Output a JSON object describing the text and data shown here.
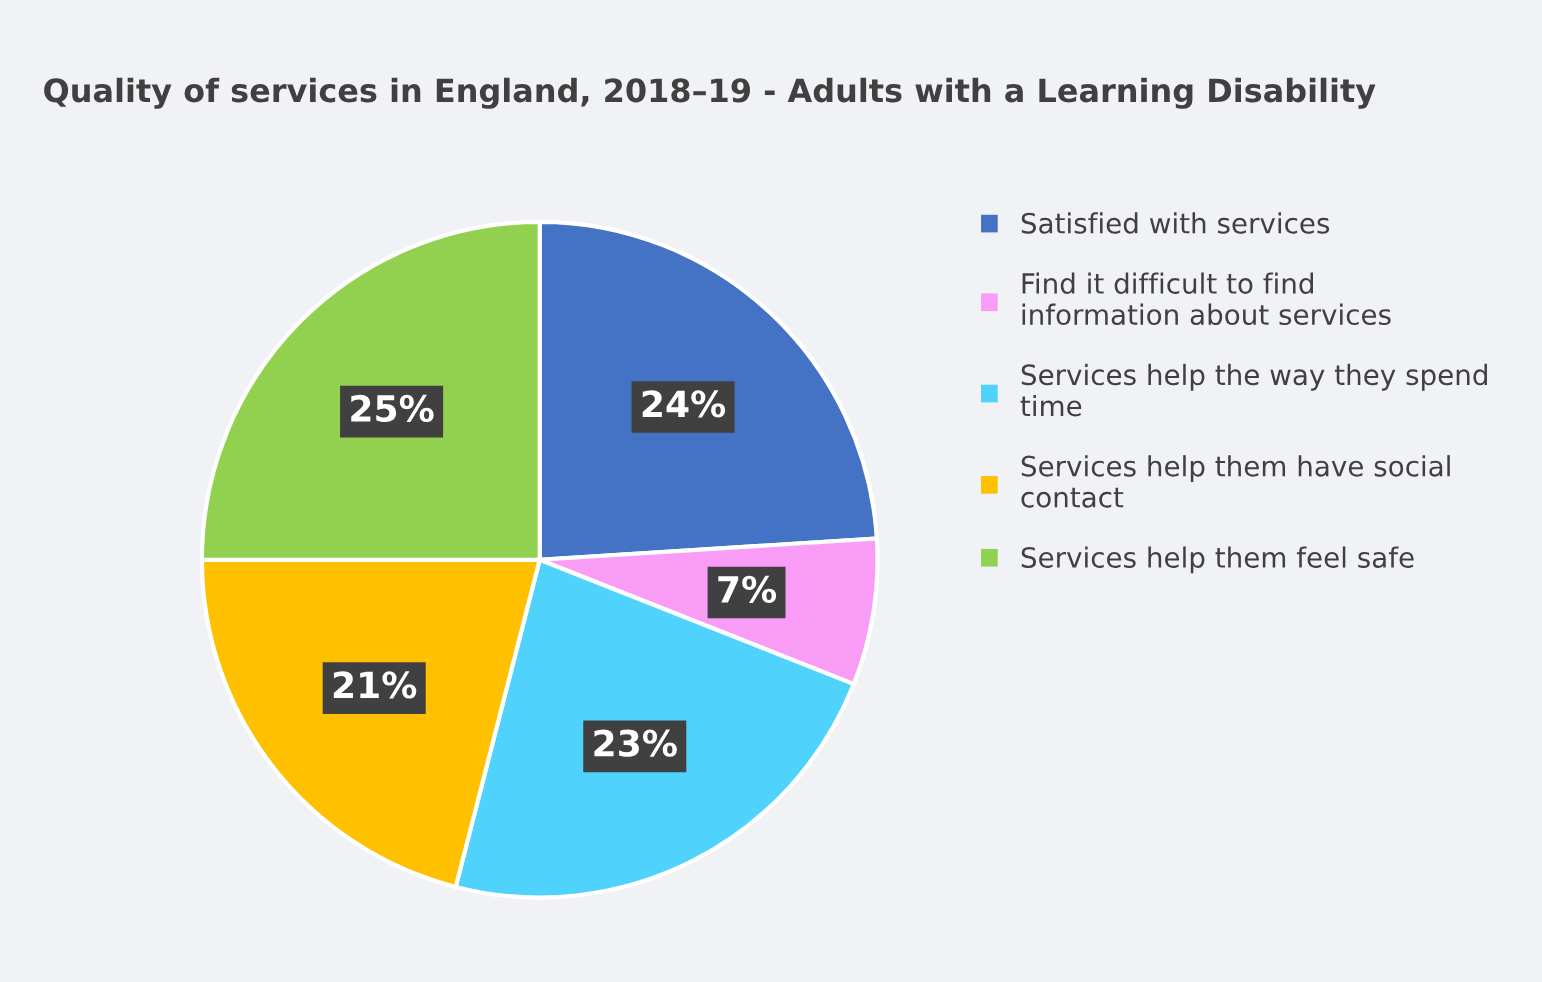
{
  "chart_data": {
    "type": "pie",
    "title": "Quality of services in England, 2018–19 - Adults with a Learning Disability",
    "categories": [
      "Satisfied with services",
      "Find it difficult to find information about services",
      "Services help the way they spend time",
      "Services help them have social contact",
      "Services help them feel safe"
    ],
    "values": [
      24,
      7,
      23,
      21,
      25
    ],
    "colors": [
      "#4472c4",
      "#f99cf5",
      "#4fd2fc",
      "#ffc000",
      "#92d050"
    ],
    "value_labels": [
      "24%",
      "7%",
      "23%",
      "21%",
      "25%"
    ],
    "legend": "right"
  }
}
